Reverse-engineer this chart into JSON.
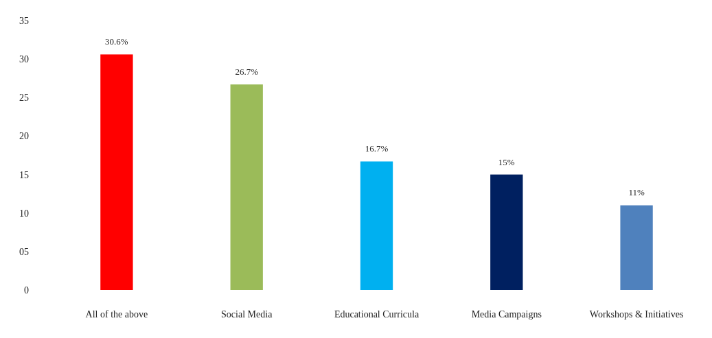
{
  "chart_data": {
    "type": "bar",
    "categories": [
      "All of the above",
      "Social Media",
      "Educational Curricula",
      "Media Campaigns",
      "Workshops & Initiatives"
    ],
    "values": [
      30.6,
      26.7,
      16.7,
      15,
      11
    ],
    "colors": [
      "#ff0000",
      "#9bbb59",
      "#00b0f0",
      "#002060",
      "#4f81bd"
    ],
    "value_labels": [
      "30.6%",
      "26.7%",
      "16.7%",
      "15%",
      "11%"
    ],
    "ylim": [
      0,
      35
    ],
    "yticks": [
      0,
      {
        "value": 5,
        "label": "05"
      },
      10,
      15,
      20,
      25,
      30,
      35
    ],
    "grid": false
  }
}
